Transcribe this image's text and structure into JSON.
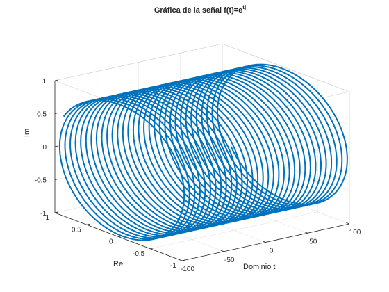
{
  "chart_data": {
    "type": "line3d",
    "title": "Gráfica de la señal f(t)=e",
    "title_superscript": "tj",
    "xlabel": "Dominio t",
    "ylabel": "Re",
    "zlabel": "Im",
    "t_range": [
      -100,
      100
    ],
    "xlim": [
      -100,
      100
    ],
    "ylim": [
      -1,
      1
    ],
    "zlim": [
      -1,
      1
    ],
    "x_ticks": [
      "-100",
      "-50",
      "0",
      "50",
      "100"
    ],
    "y_ticks": [
      "-1",
      "-0.5",
      "0",
      "0.5",
      "1"
    ],
    "z_ticks": [
      "-1",
      "-0.5",
      "0",
      "0.5",
      "1"
    ],
    "series": [
      {
        "x": "t",
        "y": "cos(t)",
        "z": "sin(t)",
        "color": "#0072BD"
      }
    ],
    "grid": true,
    "box": true
  }
}
